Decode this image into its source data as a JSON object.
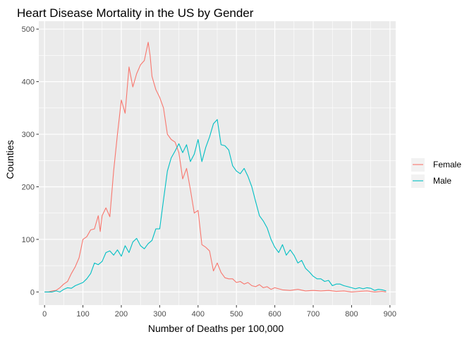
{
  "chart_data": {
    "type": "line",
    "title": "Heart Disease Mortality in the US by Gender",
    "xlabel": "Number of Deaths per 100,000",
    "ylabel": "Counties",
    "xlim": [
      -15,
      915
    ],
    "ylim": [
      -25,
      515
    ],
    "xticks": [
      0,
      100,
      200,
      300,
      400,
      500,
      600,
      700,
      800,
      900
    ],
    "yticks": [
      0,
      100,
      200,
      300,
      400,
      500
    ],
    "grid": true,
    "legend_position": "right",
    "panel_color": "#ebebeb",
    "series": [
      {
        "name": "Female",
        "color": "#f8766d",
        "x": [
          0,
          10,
          20,
          30,
          40,
          50,
          60,
          70,
          80,
          90,
          100,
          110,
          120,
          130,
          140,
          145,
          150,
          160,
          170,
          180,
          190,
          200,
          210,
          220,
          230,
          240,
          250,
          260,
          270,
          275,
          280,
          290,
          300,
          310,
          320,
          330,
          340,
          350,
          360,
          370,
          380,
          390,
          400,
          410,
          420,
          430,
          440,
          450,
          460,
          470,
          480,
          490,
          500,
          510,
          520,
          530,
          540,
          550,
          560,
          570,
          580,
          590,
          600,
          620,
          640,
          660,
          680,
          700,
          720,
          740,
          760,
          780,
          800,
          820,
          840,
          860,
          880,
          890
        ],
        "y": [
          0,
          0,
          2,
          3,
          8,
          15,
          20,
          35,
          48,
          65,
          100,
          105,
          118,
          120,
          145,
          115,
          145,
          160,
          143,
          230,
          300,
          365,
          340,
          428,
          390,
          415,
          432,
          440,
          475,
          450,
          410,
          385,
          370,
          350,
          300,
          290,
          285,
          265,
          215,
          235,
          195,
          150,
          155,
          90,
          85,
          78,
          40,
          55,
          37,
          27,
          25,
          25,
          18,
          20,
          15,
          18,
          12,
          10,
          14,
          8,
          10,
          5,
          8,
          4,
          3,
          5,
          2,
          3,
          2,
          3,
          1,
          2,
          0,
          1,
          2,
          0,
          1,
          0
        ]
      },
      {
        "name": "Male",
        "color": "#00bfc4",
        "x": [
          0,
          10,
          20,
          30,
          40,
          50,
          60,
          70,
          80,
          90,
          100,
          110,
          120,
          130,
          140,
          150,
          160,
          170,
          180,
          190,
          200,
          210,
          220,
          230,
          240,
          250,
          260,
          270,
          280,
          290,
          300,
          310,
          320,
          330,
          340,
          350,
          360,
          370,
          380,
          390,
          400,
          410,
          420,
          430,
          440,
          450,
          460,
          470,
          480,
          490,
          500,
          510,
          520,
          530,
          540,
          550,
          560,
          570,
          580,
          590,
          600,
          610,
          620,
          630,
          640,
          650,
          660,
          670,
          680,
          690,
          700,
          710,
          720,
          730,
          740,
          750,
          760,
          770,
          780,
          790,
          800,
          810,
          820,
          830,
          840,
          850,
          860,
          870,
          880,
          890
        ],
        "y": [
          0,
          0,
          0,
          2,
          0,
          5,
          8,
          7,
          12,
          15,
          18,
          25,
          35,
          55,
          52,
          58,
          75,
          78,
          70,
          80,
          68,
          88,
          75,
          95,
          102,
          88,
          82,
          92,
          98,
          120,
          120,
          175,
          230,
          255,
          268,
          282,
          265,
          280,
          248,
          262,
          290,
          248,
          275,
          295,
          320,
          328,
          280,
          278,
          270,
          240,
          230,
          225,
          235,
          220,
          200,
          172,
          145,
          135,
          122,
          100,
          85,
          75,
          90,
          70,
          80,
          70,
          55,
          60,
          45,
          38,
          30,
          25,
          25,
          20,
          22,
          12,
          15,
          15,
          12,
          10,
          8,
          6,
          8,
          6,
          8,
          7,
          3,
          5,
          4,
          2
        ]
      }
    ]
  }
}
